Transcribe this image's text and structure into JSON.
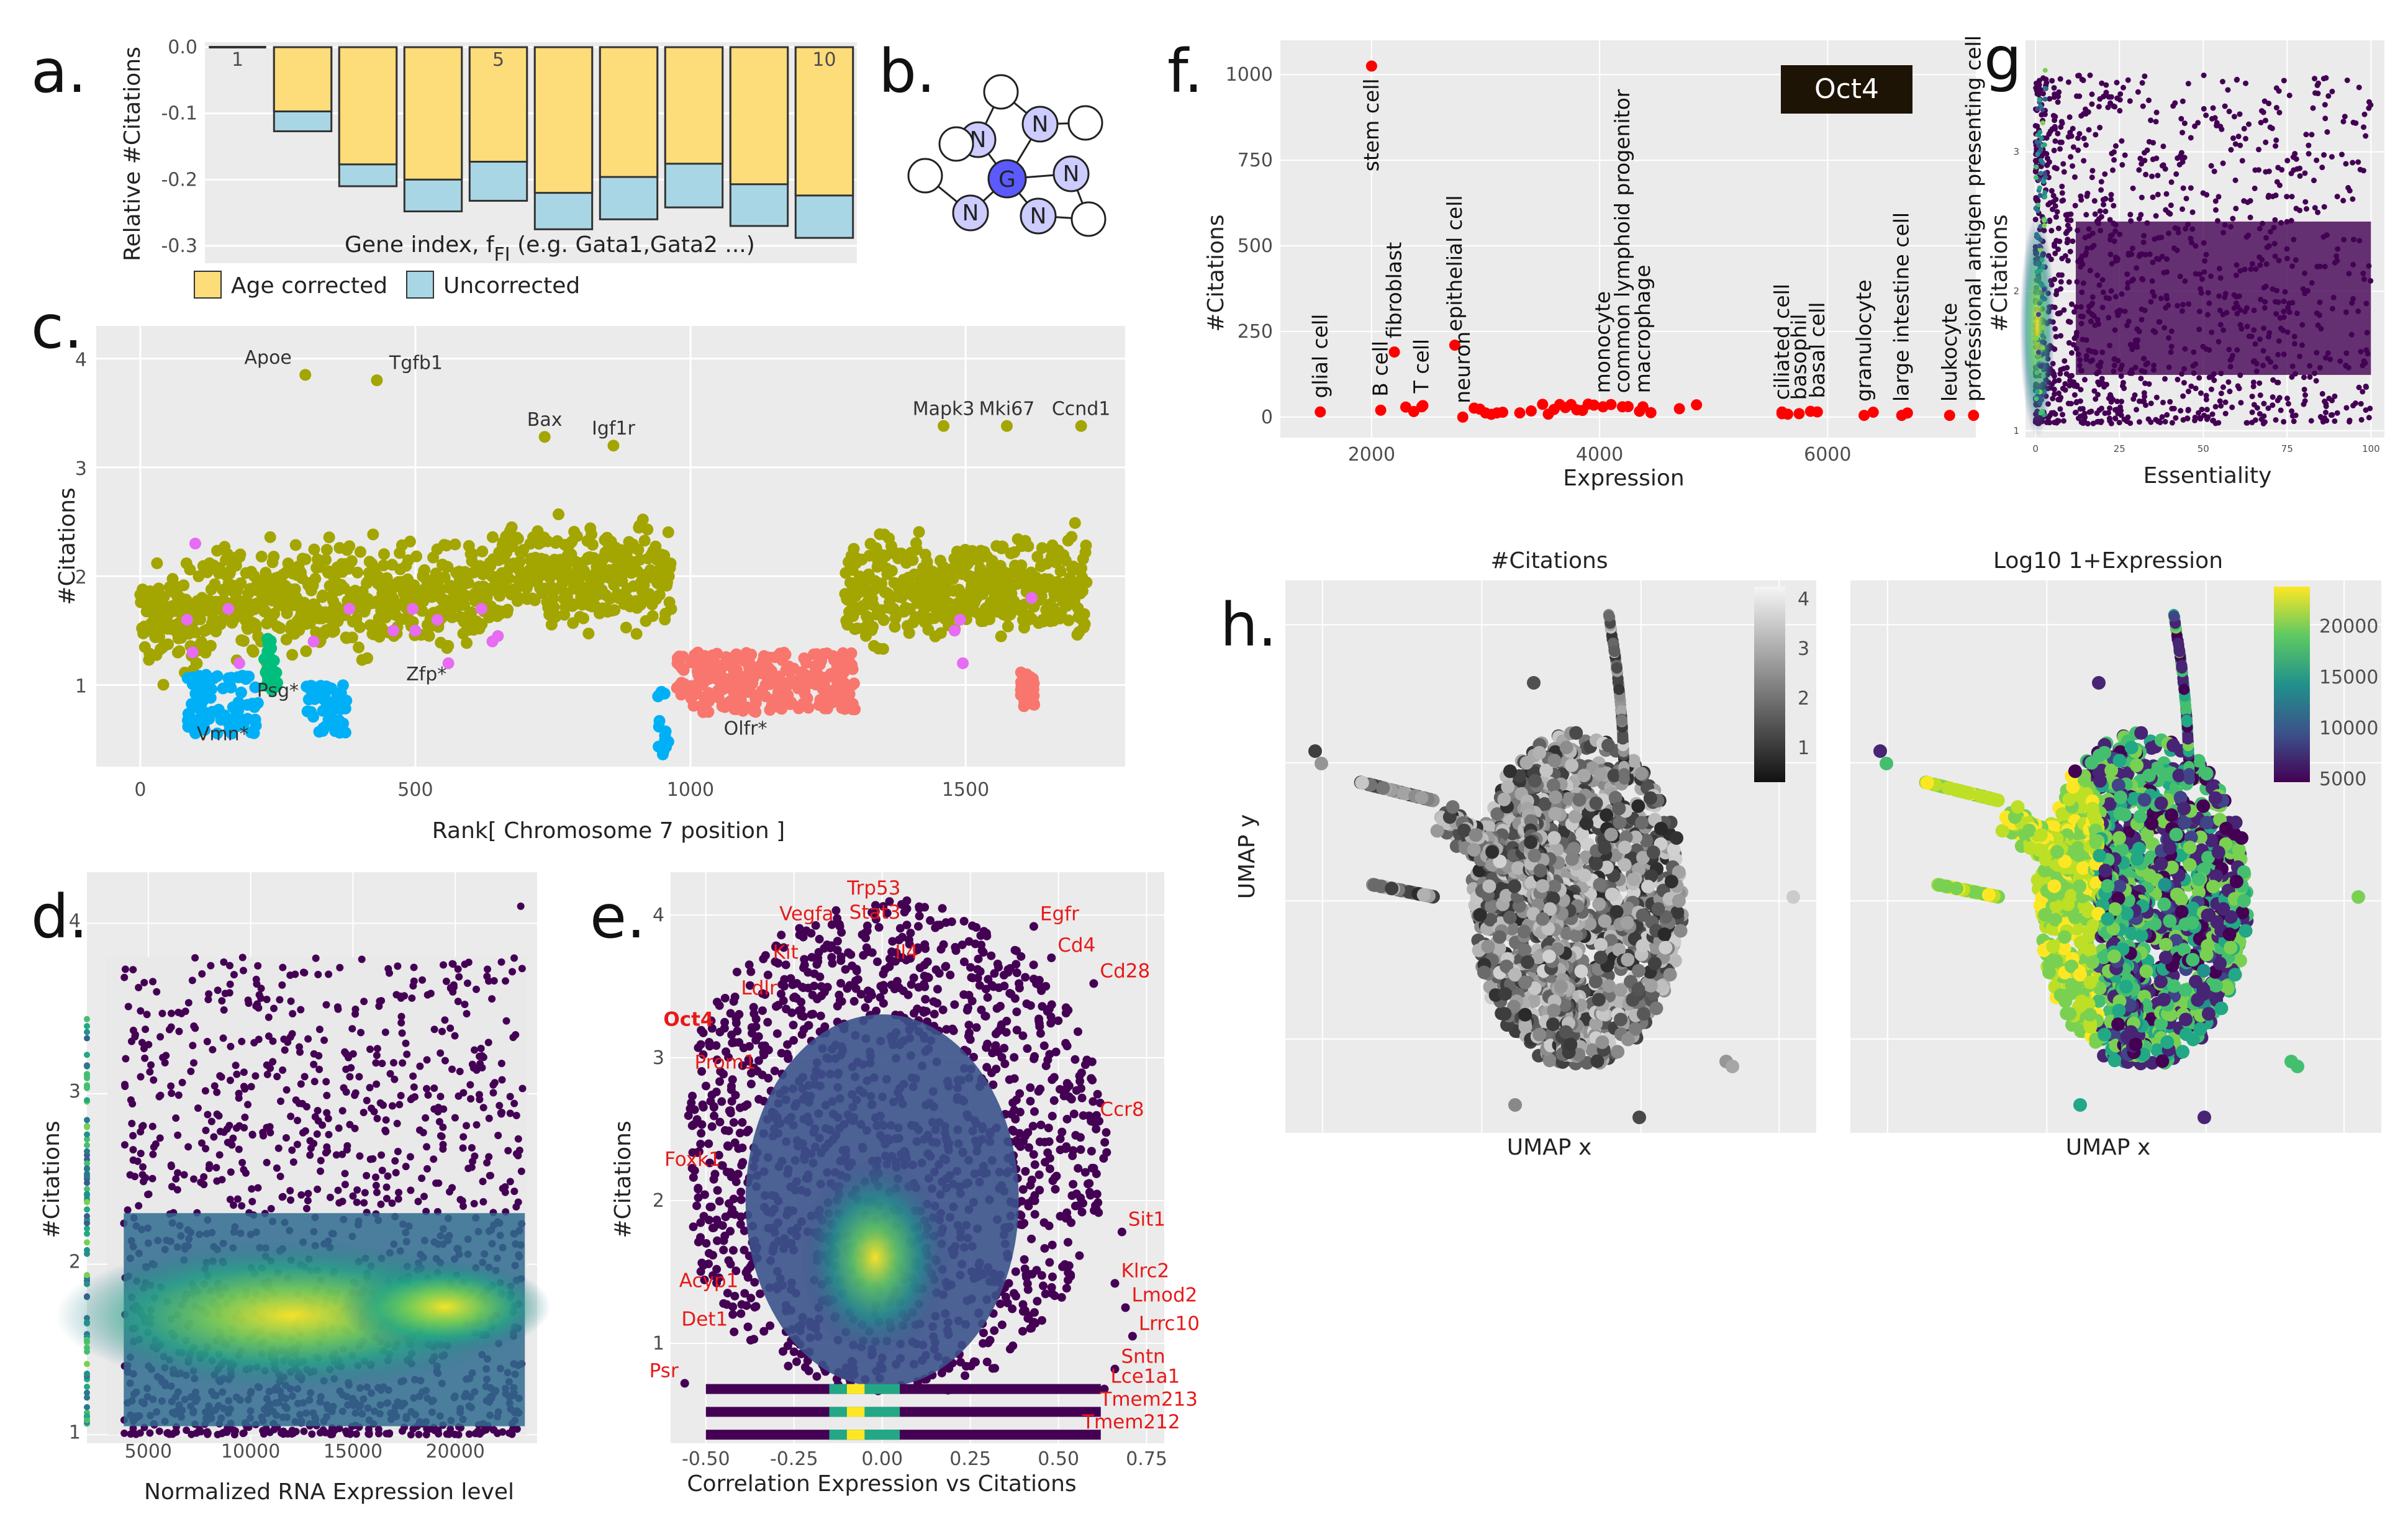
{
  "panel_labels": {
    "a": "a.",
    "b": "b.",
    "c": "c.",
    "d": "d.",
    "e": "e.",
    "f": "f.",
    "g": "g.",
    "h": "h."
  },
  "colors": {
    "panel_bg": "#ebebeb",
    "grid": "#ffffff",
    "age": "#fddc7a",
    "uncorr": "#a9d6e5",
    "olive": "#a3a500",
    "pink": "#e76bf3",
    "blue": "#00b0f6",
    "green": "#00bf7d",
    "salmon": "#f8766d",
    "red": "#ff0000",
    "node": "#ccccff",
    "center": "#5a5aff",
    "dark": "#440154"
  },
  "chart_data": [
    {
      "id": "a",
      "type": "bar",
      "ylabel": "Relative #Citations",
      "xlabel": "Gene index, f",
      "xlabel_sub": "FI",
      "xlabel_tail": " (e.g. Gata1,Gata2 ...)",
      "ylim": [
        -0.3,
        0.0
      ],
      "yticks": [
        0.0,
        -0.1,
        -0.2,
        -0.3
      ],
      "yticklabels": [
        "0.0",
        "-0.1",
        "-0.2",
        "-0.3"
      ],
      "bar_index_labels": [
        "1",
        "5",
        "10"
      ],
      "categories": [
        1,
        2,
        3,
        4,
        5,
        6,
        7,
        8,
        9,
        10
      ],
      "series": [
        {
          "name": "Age corrected",
          "values": [
            0.0,
            -0.097,
            -0.177,
            -0.2,
            -0.173,
            -0.22,
            -0.196,
            -0.176,
            -0.207,
            -0.224
          ]
        },
        {
          "name": "Uncorrected",
          "values": [
            0.0,
            -0.127,
            -0.21,
            -0.248,
            -0.232,
            -0.275,
            -0.26,
            -0.242,
            -0.27,
            -0.288
          ]
        }
      ],
      "legend": [
        "Age corrected",
        "Uncorrected"
      ]
    },
    {
      "id": "b",
      "type": "diagram",
      "center_label": "G",
      "node_label": "N"
    },
    {
      "id": "c",
      "type": "scatter",
      "xlabel": "Rank[ Chromosome 7 position ]",
      "ylabel": "#Citations",
      "xlim": [
        -80,
        1790
      ],
      "ylim": [
        0.25,
        4.3
      ],
      "xticks": [
        0,
        500,
        1000,
        1500
      ],
      "xticklabels": [
        "0",
        "500",
        "1000",
        "1500"
      ],
      "yticks": [
        1,
        2,
        3,
        4
      ],
      "yticklabels": [
        "1",
        "2",
        "3",
        "4"
      ],
      "annotations": [
        {
          "text": "Apoe",
          "x": 300,
          "y": 3.85
        },
        {
          "text": "Tgfb1",
          "x": 430,
          "y": 3.8
        },
        {
          "text": "Bax",
          "x": 735,
          "y": 3.28
        },
        {
          "text": "Igf1r",
          "x": 860,
          "y": 3.2
        },
        {
          "text": "Mapk3",
          "x": 1460,
          "y": 3.38
        },
        {
          "text": "Mki67",
          "x": 1575,
          "y": 3.38
        },
        {
          "text": "Ccnd1",
          "x": 1710,
          "y": 3.38
        },
        {
          "text": "Psg*",
          "x": 250,
          "y": 0.95
        },
        {
          "text": "Zfp*",
          "x": 520,
          "y": 1.1
        },
        {
          "text": "Vmn*",
          "x": 150,
          "y": 0.55
        },
        {
          "text": "Olfr*",
          "x": 1100,
          "y": 0.6
        }
      ]
    },
    {
      "id": "d",
      "type": "density_scatter",
      "xlabel": "Normalized RNA Expression level",
      "ylabel": "#Citations",
      "xlim": [
        2000,
        24000
      ],
      "ylim": [
        0.95,
        4.3
      ],
      "xticks": [
        5000,
        10000,
        15000,
        20000
      ],
      "xticklabels": [
        "5000",
        "10000",
        "15000",
        "20000"
      ],
      "yticks": [
        1,
        2,
        3,
        4
      ],
      "yticklabels": [
        "1",
        "2",
        "3",
        "4"
      ]
    },
    {
      "id": "e",
      "type": "density_scatter",
      "xlabel": "Correlation Expression vs Citations",
      "ylabel": "#Citations",
      "xlim": [
        -0.6,
        0.8
      ],
      "ylim": [
        0.3,
        4.3
      ],
      "xticks": [
        -0.5,
        -0.25,
        0.0,
        0.25,
        0.5,
        0.75
      ],
      "xticklabels": [
        "-0.50",
        "-0.25",
        "0.00",
        "0.25",
        "0.50",
        "0.75"
      ],
      "yticks": [
        1,
        2,
        3,
        4
      ],
      "yticklabels": [
        "1",
        "2",
        "3",
        "4"
      ],
      "gene_labels": [
        {
          "text": "Trp53",
          "x": 0.07,
          "y": 4.1
        },
        {
          "text": "Vegfa",
          "x": -0.12,
          "y": 3.92
        },
        {
          "text": "Stat3",
          "x": 0.07,
          "y": 3.93
        },
        {
          "text": "Egfr",
          "x": 0.43,
          "y": 3.92
        },
        {
          "text": "Kit",
          "x": -0.22,
          "y": 3.65
        },
        {
          "text": "Il4",
          "x": 0.12,
          "y": 3.65
        },
        {
          "text": "Cd4",
          "x": 0.48,
          "y": 3.7
        },
        {
          "text": "Cd28",
          "x": 0.6,
          "y": 3.52
        },
        {
          "text": "Ldlr",
          "x": -0.28,
          "y": 3.4
        },
        {
          "text": "Oct4",
          "x": -0.46,
          "y": 3.18
        },
        {
          "text": "Prom1",
          "x": -0.34,
          "y": 2.88
        },
        {
          "text": "Ccr8",
          "x": 0.6,
          "y": 2.55
        },
        {
          "text": "Foxk1",
          "x": -0.44,
          "y": 2.2
        },
        {
          "text": "Sit1",
          "x": 0.68,
          "y": 1.78
        },
        {
          "text": "Acyp1",
          "x": -0.39,
          "y": 1.35
        },
        {
          "text": "Klrc2",
          "x": 0.66,
          "y": 1.42
        },
        {
          "text": "Lmod2",
          "x": 0.69,
          "y": 1.25
        },
        {
          "text": "Det1",
          "x": -0.42,
          "y": 1.08
        },
        {
          "text": "Lrrc10",
          "x": 0.71,
          "y": 1.05
        },
        {
          "text": "Sntn",
          "x": 0.66,
          "y": 0.82
        },
        {
          "text": "Psr",
          "x": -0.56,
          "y": 0.72
        },
        {
          "text": "Lce1a1",
          "x": 0.63,
          "y": 0.68
        },
        {
          "text": "Tmem213",
          "x": 0.6,
          "y": 0.52
        },
        {
          "text": "Tmem212",
          "x": 0.55,
          "y": 0.36
        }
      ]
    },
    {
      "id": "f",
      "type": "scatter",
      "xlabel": "Expression",
      "ylabel": "#Citations",
      "xlim": [
        1200,
        7300
      ],
      "ylim": [
        -60,
        1100
      ],
      "xticks": [
        2000,
        4000,
        6000
      ],
      "xticklabels": [
        "2000",
        "4000",
        "6000"
      ],
      "yticks": [
        0,
        250,
        500,
        750,
        1000
      ],
      "yticklabels": [
        "0",
        "250",
        "500",
        "750",
        "1000"
      ],
      "badge": "Oct4",
      "cell_labels": [
        {
          "text": "glial cell",
          "x": 1550,
          "y": 15
        },
        {
          "text": "stem cell",
          "x": 2000,
          "y": 1025
        },
        {
          "text": "B cell",
          "x": 2080,
          "y": 20
        },
        {
          "text": "fibroblast",
          "x": 2200,
          "y": 190
        },
        {
          "text": "T cell",
          "x": 2440,
          "y": 30
        },
        {
          "text": "epithelial cell",
          "x": 2730,
          "y": 210
        },
        {
          "text": "neuron",
          "x": 2800,
          "y": 0
        },
        {
          "text": "monocyte",
          "x": 4030,
          "y": 30
        },
        {
          "text": "common lymphoid progenitor",
          "x": 4200,
          "y": 30
        },
        {
          "text": "macrophage",
          "x": 4380,
          "y": 30
        },
        {
          "text": "ciliated cell",
          "x": 5600,
          "y": 10
        },
        {
          "text": "basophil",
          "x": 5750,
          "y": 10
        },
        {
          "text": "basal cell",
          "x": 5910,
          "y": 15
        },
        {
          "text": "granulocyte",
          "x": 6320,
          "y": 5
        },
        {
          "text": "large intestine cell",
          "x": 6650,
          "y": 5
        },
        {
          "text": "leukocyte",
          "x": 7070,
          "y": 5
        },
        {
          "text": "professional antigen presenting cell",
          "x": 7280,
          "y": 5
        }
      ]
    },
    {
      "id": "g",
      "type": "density_scatter",
      "xlabel": "Essentiality",
      "ylabel": "#Citations",
      "xlim": [
        -3,
        104
      ],
      "ylim": [
        0.95,
        3.8
      ],
      "xticks": [
        0,
        25,
        50,
        75,
        100
      ],
      "xticklabels": [
        "0",
        "25",
        "50",
        "75",
        "100"
      ],
      "yticks": [
        1,
        2,
        3
      ],
      "yticklabels": [
        "1",
        "2",
        "3"
      ]
    },
    {
      "id": "h1",
      "type": "scatter",
      "title": "#Citations",
      "xlabel": "UMAP x",
      "ylabel": "UMAP y",
      "colorbar": {
        "ticks": [
          "1",
          "2",
          "3",
          "4"
        ]
      }
    },
    {
      "id": "h2",
      "type": "scatter",
      "title": "Log10 1+Expression",
      "xlabel": "UMAP x",
      "colorbar": {
        "ticks": [
          "5000",
          "10000",
          "15000",
          "20000"
        ]
      }
    }
  ]
}
